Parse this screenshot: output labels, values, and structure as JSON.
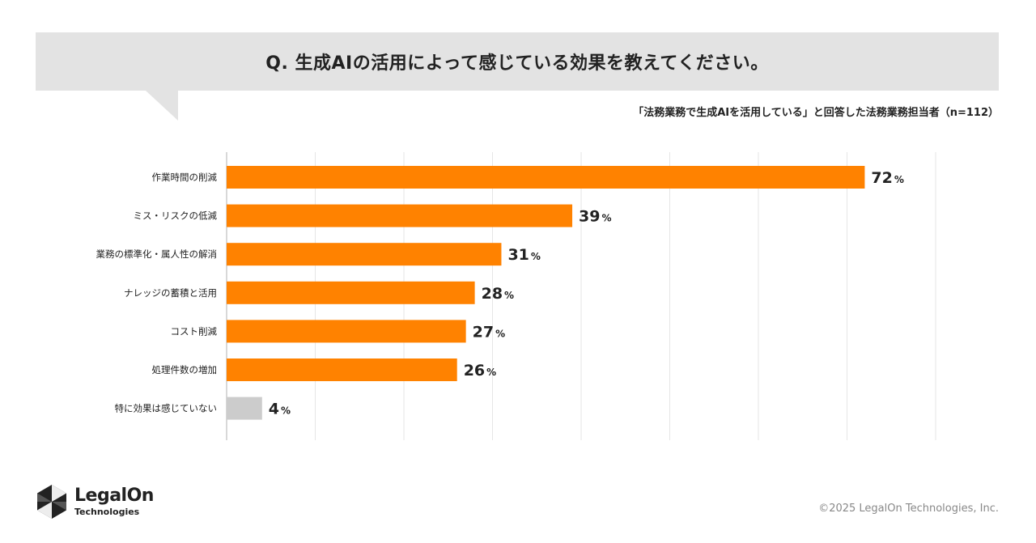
{
  "header": {
    "question": "Q. 生成AIの活用によって感じている効果を教えてください。",
    "sample_note": "「法務業務で生成AIを活用している」と回答した法務業務担当者（n=112）"
  },
  "chart_data": {
    "type": "bar",
    "orientation": "horizontal",
    "title": "Q. 生成AIの活用によって感じている効果を教えてください。",
    "categories": [
      "作業時間の削減",
      "ミス・リスクの低減",
      "業務の標準化・属人性の解消",
      "ナレッジの蓄積と活用",
      "コスト削減",
      "処理件数の増加",
      "特に効果は感じていない"
    ],
    "values": [
      72,
      39,
      31,
      28,
      27,
      26,
      4
    ],
    "unit": "%",
    "xlim": [
      0,
      80
    ],
    "grid": true,
    "colors": {
      "primary": "#ff8200",
      "none_response": "#cccccc",
      "grid": "#e6e6e6",
      "axis": "#b0b0b0"
    }
  },
  "footer": {
    "logo_main": "LegalOn",
    "logo_sub": "Technologies",
    "copyright": "©2025 LegalOn Technologies, Inc."
  }
}
